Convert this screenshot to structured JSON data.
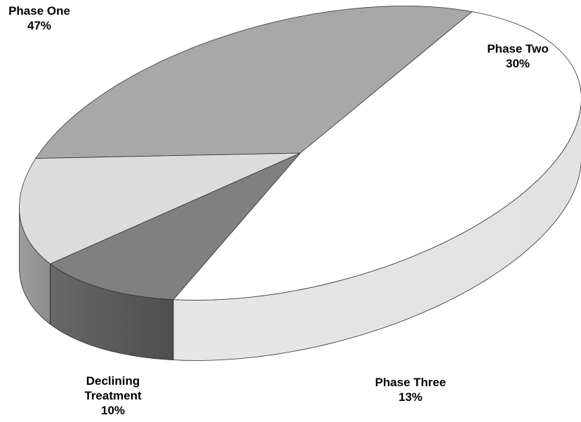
{
  "chart_data": {
    "type": "pie",
    "style": "3d",
    "slices": [
      {
        "key": "one",
        "label_lines": [
          "Phase One"
        ],
        "percent_text": "47%",
        "value": 47,
        "color": "#ffffff",
        "side_color": "#e2e2e2"
      },
      {
        "key": "two",
        "label_lines": [
          "Phase Two"
        ],
        "percent_text": "30%",
        "value": 30,
        "color": "#a8a8a8",
        "side_color": "#5c5c5c"
      },
      {
        "key": "three",
        "label_lines": [
          "Phase Three"
        ],
        "percent_text": "13%",
        "value": 13,
        "color": "#dcdcdc",
        "side_color": "#8c8c8c"
      },
      {
        "key": "declining",
        "label_lines": [
          "Declining",
          "Treatment"
        ],
        "percent_text": "10%",
        "value": 10,
        "color": "#808080",
        "side_color": "#4e4e4e"
      }
    ]
  }
}
